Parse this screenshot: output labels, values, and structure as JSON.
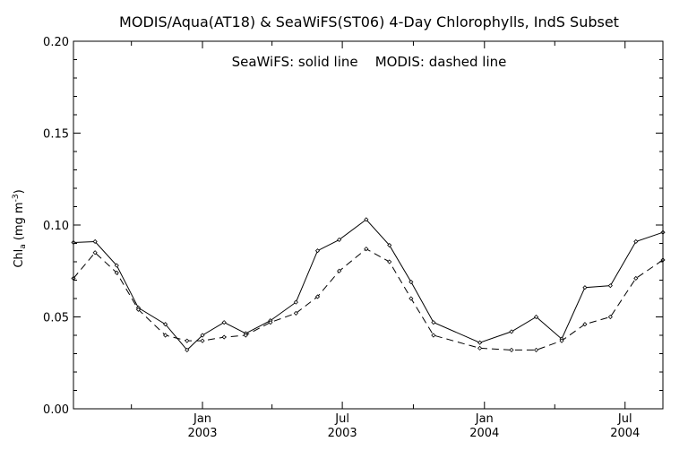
{
  "chart_data": {
    "type": "line",
    "title": "MODIS/Aqua(AT18) & SeaWiFS(ST06) 4-Day Chlorophylls, IndS Subset",
    "annotation": "SeaWiFS: solid line    MODIS: dashed line",
    "ylabel_main": "Chl",
    "ylabel_sub": "a",
    "ylabel_units_pre": "(mg m",
    "ylabel_units_sup": "-3",
    "ylabel_units_post": ")",
    "ylim": [
      0.0,
      0.2
    ],
    "y_ticks": [
      {
        "value": 0.0,
        "label": "0.00"
      },
      {
        "value": 0.05,
        "label": "0.05"
      },
      {
        "value": 0.1,
        "label": "0.10"
      },
      {
        "value": 0.15,
        "label": "0.15"
      },
      {
        "value": 0.2,
        "label": "0.20"
      }
    ],
    "xlim": [
      "2002-07-18",
      "2004-08-19"
    ],
    "x_major_ticks": [
      {
        "date": "2003-01-01",
        "month": "Jan",
        "year": "2003"
      },
      {
        "date": "2003-07-01",
        "month": "Jul",
        "year": "2003"
      },
      {
        "date": "2004-01-01",
        "month": "Jan",
        "year": "2004"
      },
      {
        "date": "2004-07-01",
        "month": "Jul",
        "year": "2004"
      }
    ],
    "x_minor_ticks": [
      "2002-10-01",
      "2003-04-01",
      "2003-10-01",
      "2004-04-01"
    ],
    "series": [
      {
        "name": "SeaWiFS",
        "style": "solid",
        "points": [
          [
            "2002-07-18",
            0.0905
          ],
          [
            "2002-08-15",
            0.091
          ],
          [
            "2002-09-12",
            0.078
          ],
          [
            "2002-10-10",
            0.055
          ],
          [
            "2002-11-14",
            0.046
          ],
          [
            "2002-12-12",
            0.032
          ],
          [
            "2003-01-01",
            0.04
          ],
          [
            "2003-01-29",
            0.047
          ],
          [
            "2003-02-26",
            0.041
          ],
          [
            "2003-03-30",
            0.048
          ],
          [
            "2003-05-02",
            0.058
          ],
          [
            "2003-05-30",
            0.086
          ],
          [
            "2003-06-27",
            0.092
          ],
          [
            "2003-08-01",
            0.103
          ],
          [
            "2003-08-31",
            0.089
          ],
          [
            "2003-09-28",
            0.069
          ],
          [
            "2003-10-27",
            0.047
          ],
          [
            "2003-12-26",
            0.036
          ],
          [
            "2004-02-05",
            0.042
          ],
          [
            "2004-03-08",
            0.05
          ],
          [
            "2004-04-10",
            0.038
          ],
          [
            "2004-05-10",
            0.066
          ],
          [
            "2004-06-12",
            0.067
          ],
          [
            "2004-07-15",
            0.091
          ],
          [
            "2004-08-19",
            0.096
          ]
        ]
      },
      {
        "name": "MODIS",
        "style": "dashed",
        "points": [
          [
            "2002-07-18",
            0.071
          ],
          [
            "2002-08-15",
            0.085
          ],
          [
            "2002-09-12",
            0.074
          ],
          [
            "2002-10-10",
            0.054
          ],
          [
            "2002-11-14",
            0.04
          ],
          [
            "2002-12-12",
            0.037
          ],
          [
            "2003-01-01",
            0.037
          ],
          [
            "2003-01-29",
            0.039
          ],
          [
            "2003-02-26",
            0.04
          ],
          [
            "2003-03-30",
            0.047
          ],
          [
            "2003-05-02",
            0.052
          ],
          [
            "2003-05-30",
            0.061
          ],
          [
            "2003-06-27",
            0.075
          ],
          [
            "2003-08-01",
            0.087
          ],
          [
            "2003-08-31",
            0.08
          ],
          [
            "2003-09-28",
            0.06
          ],
          [
            "2003-10-27",
            0.04
          ],
          [
            "2003-12-26",
            0.033
          ],
          [
            "2004-02-05",
            0.032
          ],
          [
            "2004-03-08",
            0.032
          ],
          [
            "2004-04-10",
            0.037
          ],
          [
            "2004-05-10",
            0.046
          ],
          [
            "2004-06-12",
            0.05
          ],
          [
            "2004-07-15",
            0.071
          ],
          [
            "2004-08-19",
            0.081
          ]
        ]
      }
    ]
  }
}
